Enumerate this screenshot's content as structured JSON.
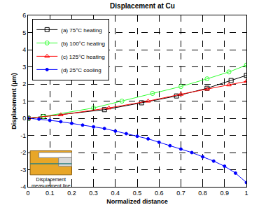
{
  "chart_data": {
    "type": "line",
    "title": "Displacement at Cu",
    "x_label": "Normalized distance",
    "y_label": "Displacement (μm)",
    "xlim": [
      0,
      1
    ],
    "xticks": [
      0,
      0.1,
      0.2,
      0.3,
      0.4,
      0.5,
      0.6,
      0.7,
      0.8,
      0.9,
      1
    ],
    "ylim": [
      -4,
      6
    ],
    "yticks": [
      -4,
      -3,
      -2,
      -1,
      0,
      1,
      2,
      3,
      4,
      5,
      6
    ],
    "grid": true,
    "legend": "upper left",
    "annotations": [
      {
        "text": "Displacement\nmeasurement line"
      }
    ],
    "series": [
      {
        "name": "(a) 75°C heating",
        "color": "#000000",
        "marker": "square-open",
        "line_style": "solid",
        "x": [
          0,
          0.07,
          0.35,
          0.52,
          0.68,
          0.82,
          0.93,
          1
        ],
        "values": [
          0,
          0.1,
          0.5,
          0.9,
          1.3,
          1.75,
          2.2,
          2.5
        ]
      },
      {
        "name": "(b) 100°C heating",
        "color": "#33ff33",
        "marker": "circle-open",
        "line_style": "solid",
        "x": [
          0,
          0.07,
          0.3,
          0.43,
          0.57,
          0.7,
          0.82,
          0.92,
          1
        ],
        "values": [
          0,
          0.1,
          0.6,
          1.0,
          1.45,
          1.85,
          2.3,
          2.7,
          3.1
        ]
      },
      {
        "name": "(c) 125°C heating",
        "color": "#ff0000",
        "marker": "triangle-up-open",
        "line_style": "solid",
        "x": [
          0,
          0.15,
          0.37,
          0.55,
          0.7,
          0.82,
          0.92,
          1
        ],
        "values": [
          0,
          0.2,
          0.6,
          1.0,
          1.4,
          1.7,
          1.95,
          2.15
        ]
      },
      {
        "name": "(d) 25°C cooling",
        "color": "#0000ff",
        "marker": "circle",
        "line_style": "solid",
        "x": [
          0,
          0.05,
          0.1,
          0.15,
          0.2,
          0.25,
          0.3,
          0.35,
          0.4,
          0.45,
          0.5,
          0.55,
          0.6,
          0.65,
          0.7,
          0.75,
          0.8,
          0.85,
          0.9,
          0.95,
          1
        ],
        "values": [
          0,
          -0.05,
          -0.12,
          -0.2,
          -0.3,
          -0.4,
          -0.5,
          -0.6,
          -0.75,
          -0.9,
          -1.05,
          -1.2,
          -1.4,
          -1.6,
          -1.8,
          -2.0,
          -2.25,
          -2.5,
          -2.8,
          -3.2,
          -3.75
        ]
      }
    ]
  }
}
